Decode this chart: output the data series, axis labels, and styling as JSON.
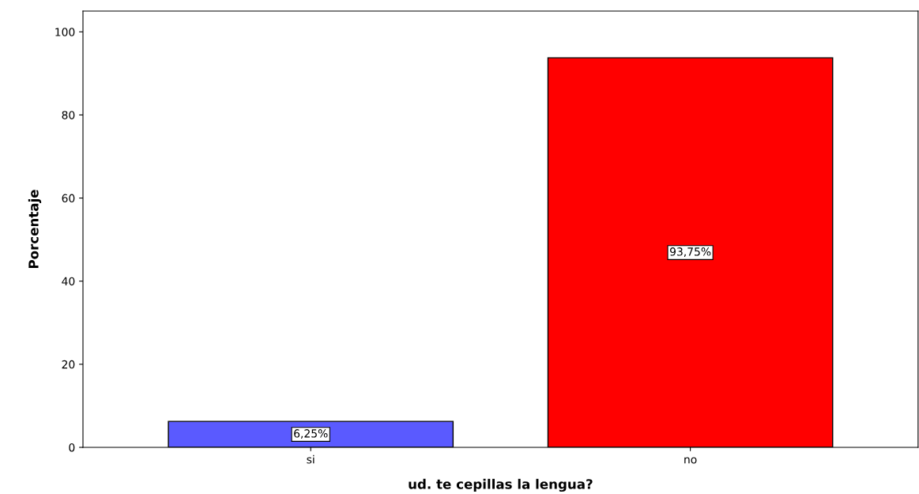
{
  "chart_data": {
    "type": "bar",
    "xlabel": "ud. te cepillas la lengua?",
    "ylabel": "Porcentaje",
    "categories": [
      "si",
      "no"
    ],
    "values": [
      6.25,
      93.75
    ],
    "colors": [
      "#5a5aff",
      "#ff0000"
    ],
    "value_labels": [
      "6,25%",
      "93,75%"
    ],
    "ylim": [
      0,
      105
    ],
    "yticks": [
      0,
      20,
      40,
      60,
      80,
      100
    ],
    "grid": false
  }
}
